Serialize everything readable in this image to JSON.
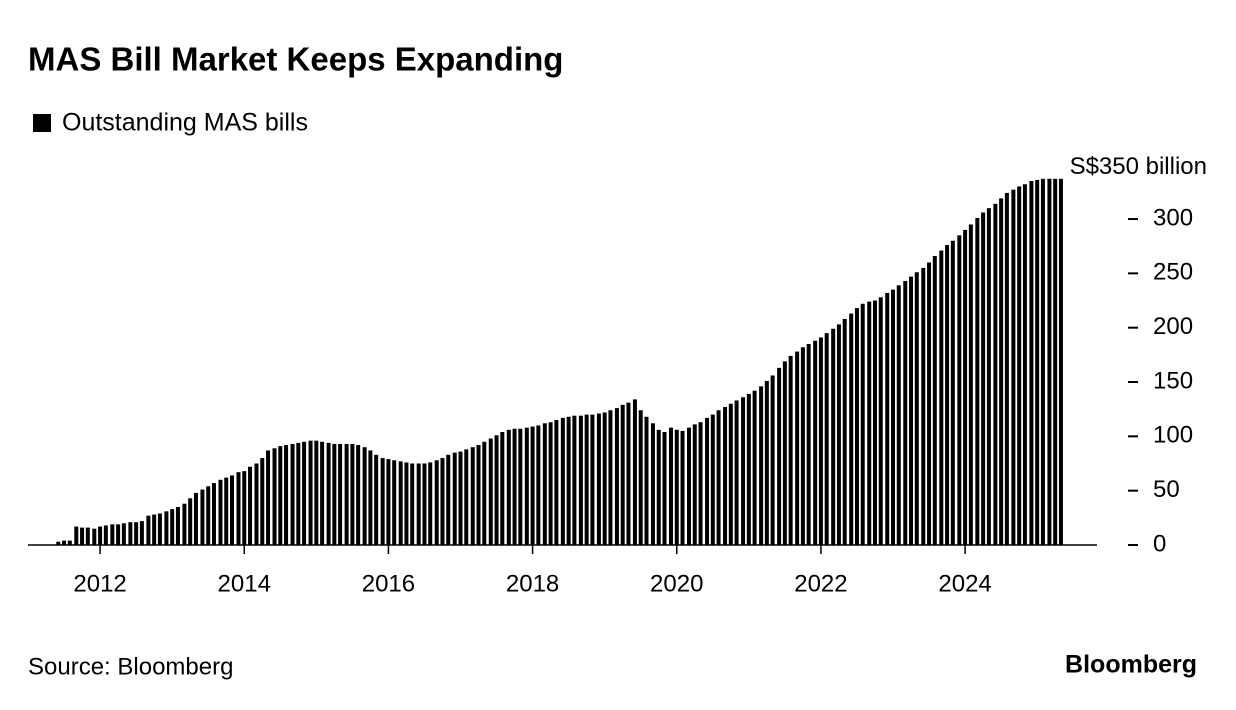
{
  "chart_data": {
    "type": "bar",
    "title": "MAS Bill Market Keeps Expanding",
    "series": [
      {
        "name": "Outstanding MAS bills",
        "color": "#000000",
        "x": [
          2011.42,
          2011.5,
          2011.58,
          2011.67,
          2011.75,
          2011.83,
          2011.92,
          2012.0,
          2012.08,
          2012.17,
          2012.25,
          2012.33,
          2012.42,
          2012.5,
          2012.58,
          2012.67,
          2012.75,
          2012.83,
          2012.92,
          2013.0,
          2013.08,
          2013.17,
          2013.25,
          2013.33,
          2013.42,
          2013.5,
          2013.58,
          2013.67,
          2013.75,
          2013.83,
          2013.92,
          2014.0,
          2014.08,
          2014.17,
          2014.25,
          2014.33,
          2014.42,
          2014.5,
          2014.58,
          2014.67,
          2014.75,
          2014.83,
          2014.92,
          2015.0,
          2015.08,
          2015.17,
          2015.25,
          2015.33,
          2015.42,
          2015.5,
          2015.58,
          2015.67,
          2015.75,
          2015.83,
          2015.92,
          2016.0,
          2016.08,
          2016.17,
          2016.25,
          2016.33,
          2016.42,
          2016.5,
          2016.58,
          2016.67,
          2016.75,
          2016.83,
          2016.92,
          2017.0,
          2017.08,
          2017.17,
          2017.25,
          2017.33,
          2017.42,
          2017.5,
          2017.58,
          2017.67,
          2017.75,
          2017.83,
          2017.92,
          2018.0,
          2018.08,
          2018.17,
          2018.25,
          2018.33,
          2018.42,
          2018.5,
          2018.58,
          2018.67,
          2018.75,
          2018.83,
          2018.92,
          2019.0,
          2019.08,
          2019.17,
          2019.25,
          2019.33,
          2019.42,
          2019.5,
          2019.58,
          2019.67,
          2019.75,
          2019.83,
          2019.92,
          2020.0,
          2020.08,
          2020.17,
          2020.25,
          2020.33,
          2020.42,
          2020.5,
          2020.58,
          2020.67,
          2020.75,
          2020.83,
          2020.92,
          2021.0,
          2021.08,
          2021.17,
          2021.25,
          2021.33,
          2021.42,
          2021.5,
          2021.58,
          2021.67,
          2021.75,
          2021.83,
          2021.92,
          2022.0,
          2022.08,
          2022.17,
          2022.25,
          2022.33,
          2022.42,
          2022.5,
          2022.58,
          2022.67,
          2022.75,
          2022.83,
          2022.92,
          2023.0,
          2023.08,
          2023.17,
          2023.25,
          2023.33,
          2023.42,
          2023.5,
          2023.58,
          2023.67,
          2023.75,
          2023.83,
          2023.92,
          2024.0,
          2024.08,
          2024.17,
          2024.25,
          2024.33,
          2024.42,
          2024.5,
          2024.58,
          2024.67,
          2024.75,
          2024.83,
          2024.92,
          2025.0,
          2025.08,
          2025.17,
          2025.25,
          2025.33
        ],
        "values": [
          3,
          4,
          4,
          17,
          16,
          16,
          15,
          17,
          18,
          19,
          19,
          20,
          21,
          21,
          22,
          27,
          28,
          29,
          31,
          33,
          35,
          38,
          43,
          48,
          51,
          54,
          57,
          60,
          62,
          64,
          67,
          68,
          72,
          75,
          80,
          87,
          89,
          91,
          92,
          93,
          94,
          95,
          96,
          96,
          95,
          94,
          93,
          93,
          93,
          93,
          92,
          90,
          87,
          83,
          80,
          79,
          78,
          77,
          76,
          75,
          75,
          75,
          76,
          78,
          80,
          83,
          85,
          86,
          88,
          90,
          92,
          95,
          98,
          101,
          104,
          106,
          107,
          107,
          108,
          109,
          110,
          112,
          113,
          115,
          117,
          118,
          119,
          119,
          120,
          120,
          121,
          122,
          124,
          126,
          129,
          131,
          134,
          124,
          118,
          112,
          106,
          104,
          108,
          106,
          105,
          108,
          111,
          113,
          117,
          120,
          124,
          127,
          130,
          133,
          136,
          139,
          142,
          146,
          151,
          156,
          163,
          169,
          174,
          178,
          182,
          185,
          188,
          191,
          195,
          199,
          203,
          208,
          213,
          218,
          222,
          224,
          225,
          228,
          232,
          235,
          239,
          243,
          247,
          251,
          255,
          260,
          266,
          271,
          276,
          280,
          285,
          290,
          295,
          301,
          306,
          310,
          314,
          319,
          324,
          327,
          330,
          332,
          335,
          336,
          337,
          337,
          337,
          337
        ]
      }
    ],
    "xlim": [
      2011.0,
      2025.83
    ],
    "xticks": [
      2012,
      2014,
      2016,
      2018,
      2020,
      2022,
      2024
    ],
    "ylim": [
      0,
      350
    ],
    "yticks": [
      0,
      50,
      100,
      150,
      200,
      250,
      300,
      {
        "value": 350,
        "label": "S$350 billion"
      }
    ],
    "source": "Source: Bloomberg",
    "brand": "Bloomberg"
  }
}
